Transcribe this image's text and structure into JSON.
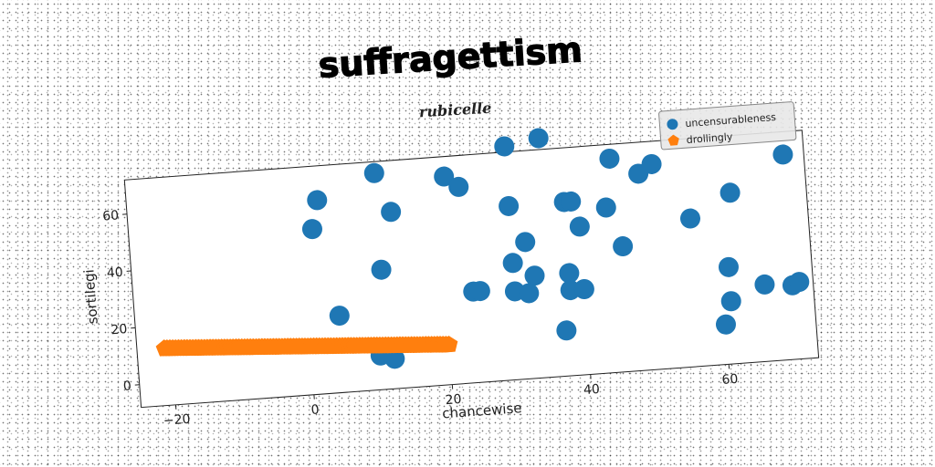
{
  "chart_data": {
    "type": "scatter",
    "title": "suffragettism",
    "subtitle": "rubicelle",
    "xlabel": "chancewise",
    "ylabel": "sortilegi",
    "xlim": [
      -25,
      73
    ],
    "ylim": [
      -8,
      72
    ],
    "xticks": [
      -20,
      0,
      20,
      40,
      60
    ],
    "yticks": [
      0,
      20,
      40,
      60
    ],
    "grid": false,
    "legend_position": "top-right",
    "series": [
      {
        "name": "uncensurableness",
        "color": "#1f77b4",
        "marker": "circle",
        "points": [
          [
            2.5,
            60
          ],
          [
            1.5,
            50
          ],
          [
            11,
            68
          ],
          [
            13,
            54
          ],
          [
            11,
            34
          ],
          [
            4.5,
            19
          ],
          [
            10,
            4
          ],
          [
            12,
            2.5
          ],
          [
            21,
            65
          ],
          [
            23,
            61
          ],
          [
            30,
            74
          ],
          [
            35,
            76
          ],
          [
            30,
            53
          ],
          [
            32,
            40
          ],
          [
            30,
            33
          ],
          [
            33,
            28
          ],
          [
            24,
            24
          ],
          [
            25,
            24
          ],
          [
            30,
            23
          ],
          [
            32,
            22
          ],
          [
            38,
            53
          ],
          [
            39,
            53
          ],
          [
            40,
            44
          ],
          [
            38,
            28
          ],
          [
            38,
            22
          ],
          [
            40,
            22
          ],
          [
            37,
            8
          ],
          [
            44,
            50
          ],
          [
            45,
            67
          ],
          [
            46,
            36
          ],
          [
            49,
            61
          ],
          [
            51,
            64
          ],
          [
            56,
            44
          ],
          [
            62,
            52
          ],
          [
            61,
            26
          ],
          [
            61,
            14
          ],
          [
            60,
            6
          ],
          [
            66,
            19
          ],
          [
            70,
            18
          ],
          [
            71,
            19
          ],
          [
            70,
            64
          ]
        ]
      },
      {
        "name": "drollingly",
        "color": "#ff7f0e",
        "marker": "pentagon",
        "line": {
          "x_start": -21,
          "x_end": 20,
          "y_start": 12,
          "y_end": 6,
          "count": 100
        }
      }
    ]
  }
}
